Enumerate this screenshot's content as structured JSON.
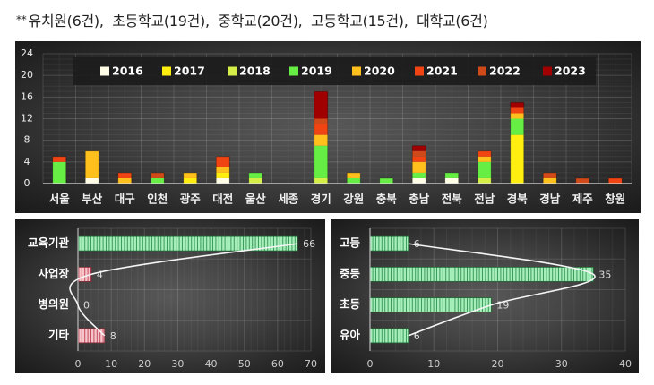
{
  "header": {
    "stars": "**",
    "note": "유치원(6건),  초등학교(19건),  중학교(20건),  고등학교(15건),  대학교(6건)"
  },
  "chart_data": [
    {
      "type": "bar",
      "stacked": true,
      "orientation": "vertical",
      "title": "",
      "xlabel": "",
      "ylabel": "",
      "categories": [
        "서울",
        "부산",
        "대구",
        "인천",
        "광주",
        "대전",
        "울산",
        "세종",
        "경기",
        "강원",
        "충북",
        "충남",
        "전북",
        "전남",
        "경북",
        "경남",
        "제주",
        "창원"
      ],
      "series": [
        {
          "name": "2016",
          "color": "#fffde6",
          "values": [
            0,
            1,
            0,
            0,
            0,
            1,
            0,
            0,
            0,
            0,
            0,
            1,
            1,
            0,
            0,
            0,
            0,
            0
          ]
        },
        {
          "name": "2017",
          "color": "#ffee10",
          "values": [
            0,
            0,
            0,
            0,
            1,
            1,
            0,
            0,
            0,
            0,
            0,
            0,
            0,
            0,
            9,
            0,
            0,
            0
          ]
        },
        {
          "name": "2018",
          "color": "#d6ee48",
          "values": [
            0,
            0,
            0,
            0,
            0,
            0,
            1,
            0,
            1,
            0,
            0,
            0,
            0,
            1,
            0,
            0,
            0,
            0
          ]
        },
        {
          "name": "2019",
          "color": "#66ee44",
          "values": [
            4,
            0,
            0,
            1,
            0,
            0,
            1,
            0,
            6,
            1,
            1,
            1,
            1,
            3,
            3,
            0,
            0,
            0
          ]
        },
        {
          "name": "2020",
          "color": "#ffbf1c",
          "values": [
            0,
            5,
            1,
            0,
            1,
            1,
            0,
            0,
            2,
            1,
            0,
            2,
            0,
            1,
            1,
            1,
            0,
            0
          ]
        },
        {
          "name": "2021",
          "color": "#f04412",
          "values": [
            1,
            0,
            1,
            0,
            0,
            2,
            0,
            0,
            2,
            0,
            0,
            1,
            0,
            1,
            1,
            0,
            0,
            1
          ]
        },
        {
          "name": "2022",
          "color": "#cf4a18",
          "values": [
            0,
            0,
            0,
            1,
            0,
            0,
            0,
            0,
            1,
            0,
            0,
            1,
            0,
            0,
            0,
            1,
            1,
            0
          ]
        },
        {
          "name": "2023",
          "color": "#a00000",
          "values": [
            0,
            0,
            0,
            0,
            0,
            0,
            0,
            0,
            5,
            0,
            0,
            1,
            0,
            0,
            1,
            0,
            0,
            0
          ]
        }
      ],
      "totals": [
        5,
        6,
        2,
        2,
        2,
        5,
        2,
        0,
        17,
        2,
        1,
        7,
        2,
        6,
        15,
        2,
        1,
        1
      ],
      "ylim": [
        0,
        24
      ],
      "yticks": [
        0,
        4,
        8,
        12,
        16,
        20,
        24
      ],
      "grid": true,
      "legend_position": "top-inside"
    },
    {
      "type": "bar",
      "orientation": "horizontal",
      "title": "",
      "categories": [
        "교육기관",
        "사업장",
        "병의원",
        "기타"
      ],
      "values": [
        66,
        4,
        0,
        8
      ],
      "bar_styles": [
        "green",
        "pink",
        "pink",
        "pink"
      ],
      "xlim": [
        0,
        70
      ],
      "xticks": [
        0,
        10,
        20,
        30,
        40,
        50,
        60,
        70
      ],
      "grid": true,
      "trend_line": "smoothed"
    },
    {
      "type": "bar",
      "orientation": "horizontal",
      "title": "",
      "categories": [
        "고등",
        "중등",
        "초등",
        "유아"
      ],
      "values": [
        6,
        35,
        19,
        6
      ],
      "bar_styles": [
        "green",
        "green",
        "green",
        "green"
      ],
      "xlim": [
        0,
        40
      ],
      "xticks": [
        0,
        10,
        20,
        30,
        40
      ],
      "grid": true,
      "trend_line": "smoothed"
    }
  ],
  "styles": {
    "green_fill": "#a6eebc",
    "green_stripe": "#3c9a58",
    "green_border": "#1f6b34",
    "pink_fill": "#f7c6cc",
    "pink_stripe": "#c24a58",
    "pink_border": "#8a2a36",
    "curve": "#f4f4f4",
    "legend_bg": "#1c1c1c"
  }
}
